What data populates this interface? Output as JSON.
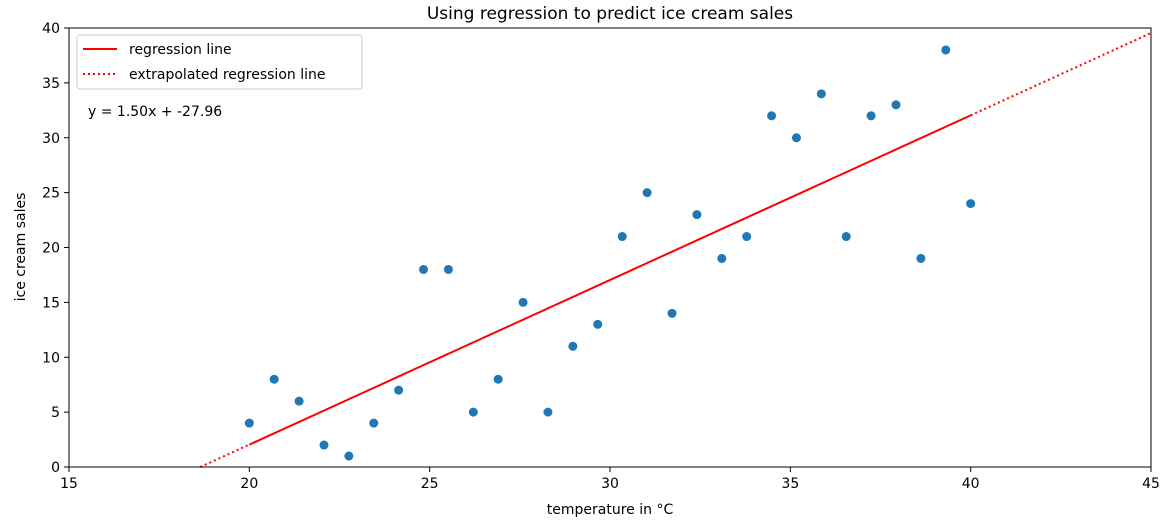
{
  "chart_data": {
    "type": "scatter",
    "title": "Using regression to predict ice cream sales",
    "xlabel": "temperature in °C",
    "ylabel": "ice cream sales",
    "xlim": [
      15,
      45
    ],
    "ylim": [
      0,
      40
    ],
    "xticks": [
      15,
      20,
      25,
      30,
      35,
      40,
      45
    ],
    "yticks": [
      0,
      5,
      10,
      15,
      20,
      25,
      30,
      35,
      40
    ],
    "grid": false,
    "legend_position": "top-left",
    "annotation": "y = 1.50x + -27.96",
    "points": {
      "color": "#1f77b4",
      "x": [
        20.0,
        20.69,
        21.38,
        22.07,
        22.76,
        23.45,
        24.14,
        24.83,
        25.52,
        26.21,
        26.9,
        27.59,
        28.28,
        28.97,
        29.66,
        30.34,
        31.03,
        31.72,
        32.41,
        33.1,
        33.79,
        34.48,
        35.17,
        35.86,
        36.55,
        37.24,
        37.93,
        38.62,
        39.31,
        40.0
      ],
      "y": [
        4,
        8,
        6,
        2,
        1,
        4,
        7,
        18,
        18,
        5,
        8,
        15,
        5,
        11,
        13,
        21,
        25,
        14,
        23,
        19,
        21,
        32,
        30,
        34,
        21,
        32,
        33,
        19,
        38,
        24
      ]
    },
    "series": [
      {
        "name": "regression line",
        "style": "solid",
        "color": "#ff0000",
        "slope": 1.5,
        "intercept": -27.96,
        "x_range": [
          20,
          40
        ]
      },
      {
        "name": "extrapolated regression line",
        "style": "dotted",
        "color": "#ff0000",
        "slope": 1.5,
        "intercept": -27.96,
        "x_range": [
          18.64,
          45
        ]
      }
    ]
  }
}
